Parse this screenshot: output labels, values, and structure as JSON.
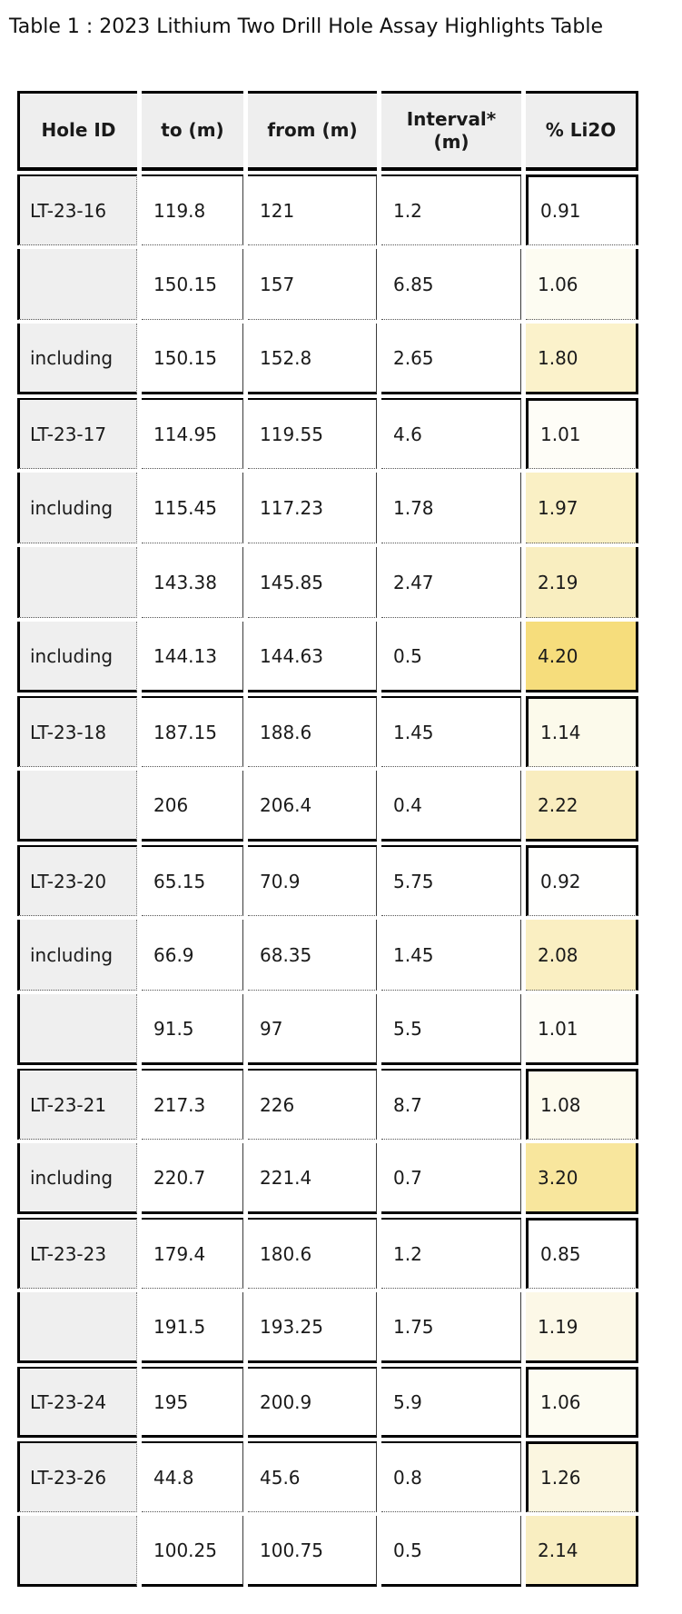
{
  "title": "Table 1 : 2023 Lithium Two Drill Hole Assay Highlights Table",
  "colors": {
    "header_bg": "#eeeeee",
    "hole_column_bg": "#efefef",
    "border": "#000000",
    "heat_min": "#ffffff",
    "heat_max": "#f6dd7c"
  },
  "table": {
    "columns": [
      {
        "label": "Hole ID"
      },
      {
        "label": "to (m)"
      },
      {
        "label": "from (m)"
      },
      {
        "label": "Interval*\n(m)"
      },
      {
        "label": "% Li2O"
      }
    ],
    "rows": [
      {
        "hole_id": "LT-23-16",
        "to": "119.8",
        "from": "121",
        "interval": "1.2",
        "li2o": "0.91",
        "li2o_color": "#ffffff",
        "group_start": true,
        "group_end": false
      },
      {
        "hole_id": "",
        "to": "150.15",
        "from": "157",
        "interval": "6.85",
        "li2o": "1.06",
        "li2o_color": "#fdfcf2",
        "group_start": false,
        "group_end": false
      },
      {
        "hole_id": "including",
        "to": "150.15",
        "from": "152.8",
        "interval": "2.65",
        "li2o": "1.80",
        "li2o_color": "#fbf2cb",
        "group_start": false,
        "group_end": true
      },
      {
        "hole_id": "LT-23-17",
        "to": "114.95",
        "from": "119.55",
        "interval": "4.6",
        "li2o": "1.01",
        "li2o_color": "#fefdf7",
        "group_start": true,
        "group_end": false
      },
      {
        "hole_id": "including",
        "to": "115.45",
        "from": "117.23",
        "interval": "1.78",
        "li2o": "1.97",
        "li2o_color": "#faf0c5",
        "group_start": false,
        "group_end": false
      },
      {
        "hole_id": "",
        "to": "143.38",
        "from": "145.85",
        "interval": "2.47",
        "li2o": "2.19",
        "li2o_color": "#f9eec0",
        "group_start": false,
        "group_end": false
      },
      {
        "hole_id": "including",
        "to": "144.13",
        "from": "144.63",
        "interval": "0.5",
        "li2o": "4.20",
        "li2o_color": "#f6dd7c",
        "group_start": false,
        "group_end": true
      },
      {
        "hole_id": "LT-23-18",
        "to": "187.15",
        "from": "188.6",
        "interval": "1.45",
        "li2o": "1.14",
        "li2o_color": "#fcfaeb",
        "group_start": true,
        "group_end": false
      },
      {
        "hole_id": "",
        "to": "206",
        "from": "206.4",
        "interval": "0.4",
        "li2o": "2.22",
        "li2o_color": "#f9edbf",
        "group_start": false,
        "group_end": true
      },
      {
        "hole_id": "LT-23-20",
        "to": "65.15",
        "from": "70.9",
        "interval": "5.75",
        "li2o": "0.92",
        "li2o_color": "#fffffe",
        "group_start": true,
        "group_end": false
      },
      {
        "hole_id": "including",
        "to": "66.9",
        "from": "68.35",
        "interval": "1.45",
        "li2o": "2.08",
        "li2o_color": "#faefc2",
        "group_start": false,
        "group_end": false
      },
      {
        "hole_id": "",
        "to": "91.5",
        "from": "97",
        "interval": "5.5",
        "li2o": "1.01",
        "li2o_color": "#fefdf7",
        "group_start": false,
        "group_end": true
      },
      {
        "hole_id": "LT-23-21",
        "to": "217.3",
        "from": "226",
        "interval": "8.7",
        "li2o": "1.08",
        "li2o_color": "#fdfbee",
        "group_start": true,
        "group_end": false
      },
      {
        "hole_id": "including",
        "to": "220.7",
        "from": "221.4",
        "interval": "0.7",
        "li2o": "3.20",
        "li2o_color": "#f8e69d",
        "group_start": false,
        "group_end": true
      },
      {
        "hole_id": "LT-23-23",
        "to": "179.4",
        "from": "180.6",
        "interval": "1.2",
        "li2o": "0.85",
        "li2o_color": "#ffffff",
        "group_start": true,
        "group_end": false
      },
      {
        "hole_id": "",
        "to": "191.5",
        "from": "193.25",
        "interval": "1.75",
        "li2o": "1.19",
        "li2o_color": "#fcf8e7",
        "group_start": false,
        "group_end": true
      },
      {
        "hole_id": "LT-23-24",
        "to": "195",
        "from": "200.9",
        "interval": "5.9",
        "li2o": "1.06",
        "li2o_color": "#fdfcf2",
        "group_start": true,
        "group_end": true
      },
      {
        "hole_id": "LT-23-26",
        "to": "44.8",
        "from": "45.6",
        "interval": "0.8",
        "li2o": "1.26",
        "li2o_color": "#fbf6e0",
        "group_start": true,
        "group_end": false
      },
      {
        "hole_id": "",
        "to": "100.25",
        "from": "100.75",
        "interval": "0.5",
        "li2o": "2.14",
        "li2o_color": "#f9eec1",
        "group_start": false,
        "group_end": true
      }
    ]
  },
  "chart_data": {
    "type": "table",
    "title": "Table 1 : 2023 Lithium Two Drill Hole Assay Highlights Table",
    "columns": [
      "Hole ID",
      "to (m)",
      "from (m)",
      "Interval* (m)",
      "% Li2O"
    ],
    "rows": [
      [
        "LT-23-16",
        119.8,
        121,
        1.2,
        0.91
      ],
      [
        "",
        150.15,
        157,
        6.85,
        1.06
      ],
      [
        "including",
        150.15,
        152.8,
        2.65,
        1.8
      ],
      [
        "LT-23-17",
        114.95,
        119.55,
        4.6,
        1.01
      ],
      [
        "including",
        115.45,
        117.23,
        1.78,
        1.97
      ],
      [
        "",
        143.38,
        145.85,
        2.47,
        2.19
      ],
      [
        "including",
        144.13,
        144.63,
        0.5,
        4.2
      ],
      [
        "LT-23-18",
        187.15,
        188.6,
        1.45,
        1.14
      ],
      [
        "",
        206,
        206.4,
        0.4,
        2.22
      ],
      [
        "LT-23-20",
        65.15,
        70.9,
        5.75,
        0.92
      ],
      [
        "including",
        66.9,
        68.35,
        1.45,
        2.08
      ],
      [
        "",
        91.5,
        97,
        5.5,
        1.01
      ],
      [
        "LT-23-21",
        217.3,
        226,
        8.7,
        1.08
      ],
      [
        "including",
        220.7,
        221.4,
        0.7,
        3.2
      ],
      [
        "LT-23-23",
        179.4,
        180.6,
        1.2,
        0.85
      ],
      [
        "",
        191.5,
        193.25,
        1.75,
        1.19
      ],
      [
        "LT-23-24",
        195,
        200.9,
        5.9,
        1.06
      ],
      [
        "LT-23-26",
        44.8,
        45.6,
        0.8,
        1.26
      ],
      [
        "",
        100.25,
        100.75,
        0.5,
        2.14
      ]
    ],
    "heatmap_column": "% Li2O",
    "heatmap_range": [
      0.85,
      4.2
    ],
    "legend_position": "none",
    "grid": true
  }
}
